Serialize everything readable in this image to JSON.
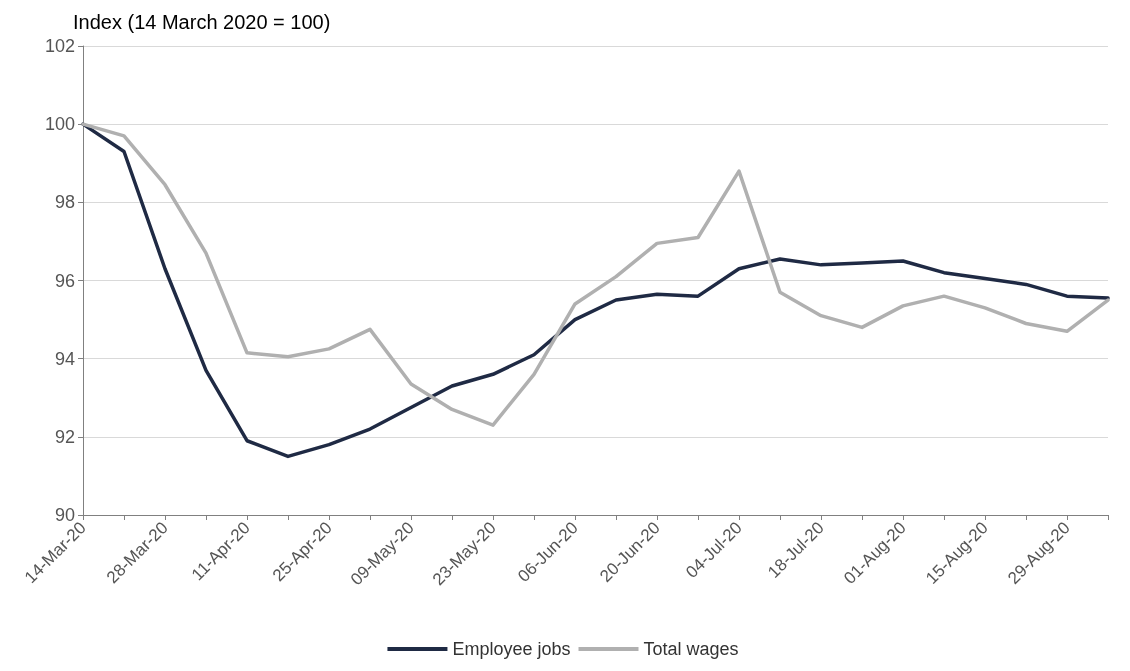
{
  "chart_data": {
    "type": "line",
    "ylabel": "Index (14 March 2020 = 100)",
    "categories": [
      "14-Mar-20",
      null,
      "28-Mar-20",
      null,
      "11-Apr-20",
      null,
      "25-Apr-20",
      null,
      "09-May-20",
      null,
      "23-May-20",
      null,
      "06-Jun-20",
      null,
      "20-Jun-20",
      null,
      "04-Jul-20",
      null,
      "18-Jul-20",
      null,
      "01-Aug-20",
      null,
      "15-Aug-20",
      null,
      "29-Aug-20",
      null
    ],
    "series": [
      {
        "name": "Employee jobs",
        "color": "#1f2a44",
        "values": [
          100.0,
          99.3,
          96.3,
          93.7,
          91.9,
          91.5,
          91.8,
          92.2,
          92.75,
          93.3,
          93.6,
          94.1,
          95.0,
          95.5,
          95.65,
          95.6,
          96.3,
          96.55,
          96.4,
          96.45,
          96.5,
          96.2,
          96.05,
          95.9,
          95.6,
          95.55
        ]
      },
      {
        "name": "Total wages",
        "color": "#b0b0b0",
        "values": [
          100.0,
          99.7,
          98.45,
          96.7,
          94.15,
          94.05,
          94.25,
          94.75,
          93.35,
          92.7,
          92.3,
          93.6,
          95.4,
          96.1,
          96.95,
          97.1,
          98.8,
          95.7,
          95.1,
          94.8,
          95.35,
          95.6,
          95.3,
          94.9,
          94.7,
          95.5
        ]
      }
    ],
    "ylim": [
      90,
      102
    ],
    "yticks": [
      90,
      92,
      94,
      96,
      98,
      100,
      102
    ],
    "grid": "y",
    "legend": "bottom",
    "marker": "none",
    "line_style": "solid"
  }
}
